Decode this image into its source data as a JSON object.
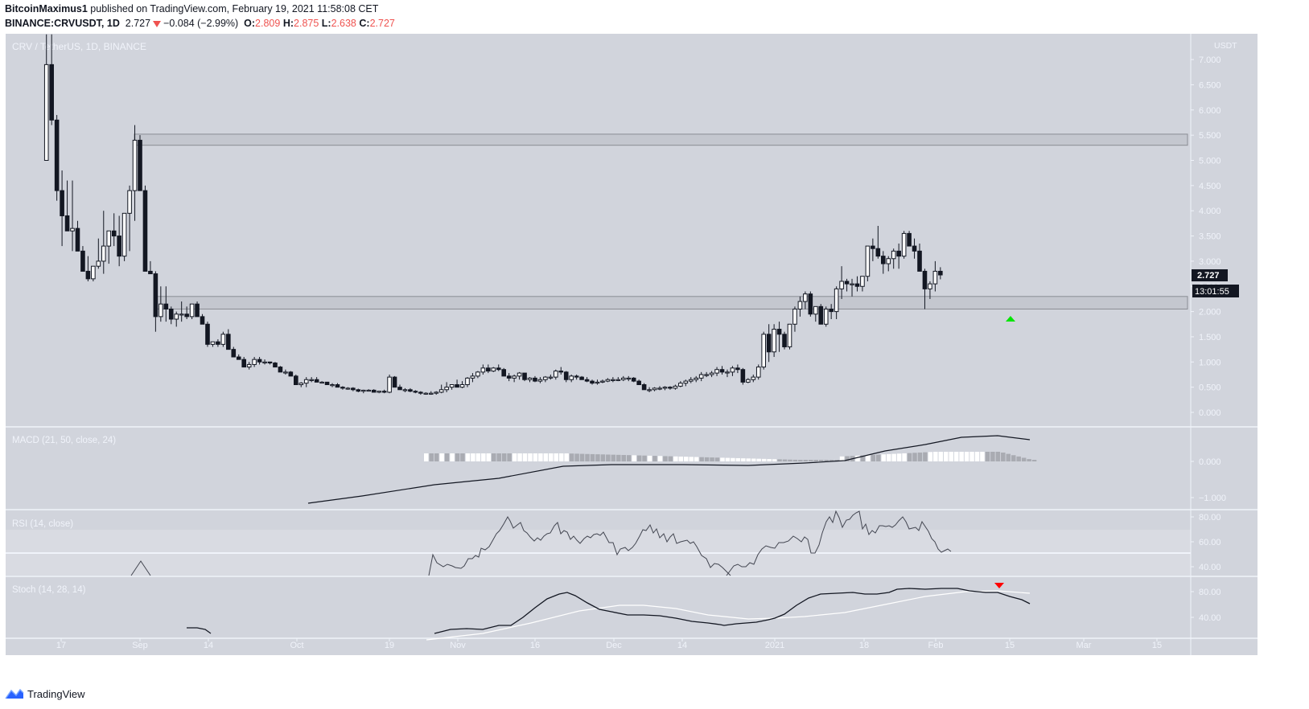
{
  "header": {
    "author": "BitcoinMaximus1",
    "published_text": " published on TradingView.com, February 19, 2021 11:58:08 CET",
    "symbol": "BINANCE:CRVUSDT, 1D",
    "last": "2.727",
    "change": "−0.084 (−2.99%)",
    "o_label": "O:",
    "o": "2.809",
    "h_label": "H:",
    "h": "2.875",
    "l_label": "L:",
    "l": "2.638",
    "c_label": "C:",
    "c": "2.727"
  },
  "footer": {
    "brand": "TradingView"
  },
  "colors": {
    "panel_bg": "#d1d4dc",
    "rsi_band": "#d9dbe2",
    "candle_down": "#131722",
    "candle_up": "#ffffff",
    "zone_fill": "#c4c7cf",
    "zone_stroke": "#8a8d94",
    "marker_up": "#00e600",
    "marker_down": "#ff0000",
    "axis_text": "#f0f3fa",
    "divider": "#f0f3fa"
  },
  "chart_data": [
    {
      "type": "candlestick",
      "title": "CRV / TetherUS, 1D, BINANCE",
      "ylabel": "USDT",
      "ylim": [
        -0.25,
        7.4
      ],
      "y_ticks": [
        "7.000",
        "6.500",
        "6.000",
        "5.500",
        "5.000",
        "4.500",
        "4.000",
        "3.500",
        "3.000",
        "2.500",
        "2.000",
        "1.500",
        "1.000",
        "0.500",
        "0.000"
      ],
      "x_ticks": [
        "17",
        "Sep",
        "14",
        "Oct",
        "19",
        "Nov",
        "16",
        "Dec",
        "14",
        "2021",
        "18",
        "Feb",
        "15",
        "Mar",
        "15"
      ],
      "last_price_label": "2.727",
      "countdown_label": "13:01:55",
      "resistance_zones": [
        {
          "from": 5.3,
          "to": 5.52,
          "x_start": "Sep 1"
        },
        {
          "from": 2.05,
          "to": 2.3,
          "x_start": "Sep 4"
        }
      ],
      "markers": [
        {
          "type": "arrow-up",
          "color": "#00e600",
          "at": "Feb 14",
          "price": 1.85
        }
      ],
      "ohlc_note": "Approximate daily candles read from chart, Aug 14 2020 to Feb 19 2021",
      "candles": [
        [
          5.0,
          7.9,
          5.0,
          6.9
        ],
        [
          6.9,
          7.6,
          5.7,
          5.8
        ],
        [
          5.8,
          5.9,
          4.2,
          4.4
        ],
        [
          4.4,
          4.8,
          3.3,
          3.9
        ],
        [
          3.9,
          4.6,
          3.6,
          3.6
        ],
        [
          3.6,
          4.6,
          3.2,
          3.65
        ],
        [
          3.65,
          3.8,
          3.2,
          3.2
        ],
        [
          3.2,
          3.3,
          2.8,
          2.8
        ],
        [
          2.8,
          3.1,
          2.6,
          2.65
        ],
        [
          2.65,
          2.9,
          2.6,
          2.9
        ],
        [
          2.9,
          3.45,
          2.85,
          3.0
        ],
        [
          3.0,
          4.0,
          2.75,
          3.3
        ],
        [
          3.3,
          3.6,
          2.95,
          3.6
        ],
        [
          3.6,
          3.95,
          3.3,
          3.5
        ],
        [
          3.5,
          3.9,
          2.9,
          3.1
        ],
        [
          3.1,
          3.9,
          3.0,
          3.95
        ],
        [
          3.95,
          4.5,
          3.2,
          4.4
        ],
        [
          4.4,
          5.7,
          3.8,
          5.4
        ],
        [
          5.4,
          5.5,
          4.4,
          4.4
        ],
        [
          4.4,
          4.5,
          2.9,
          2.8
        ],
        [
          2.8,
          3.0,
          2.8,
          2.75
        ],
        [
          2.75,
          2.8,
          1.6,
          1.9
        ],
        [
          1.9,
          2.5,
          1.8,
          2.15
        ],
        [
          2.15,
          2.5,
          1.8,
          2.05
        ],
        [
          2.05,
          2.1,
          1.75,
          1.85
        ],
        [
          1.85,
          2.0,
          1.7,
          1.95
        ],
        [
          1.95,
          2.2,
          1.8,
          1.95
        ],
        [
          1.95,
          2.1,
          1.85,
          1.9
        ],
        [
          1.9,
          2.15,
          1.85,
          2.15
        ],
        [
          2.15,
          2.2,
          1.9,
          1.9
        ],
        [
          1.9,
          1.95,
          1.75,
          1.75
        ],
        [
          1.75,
          1.8,
          1.3,
          1.35
        ],
        [
          1.35,
          1.4,
          1.3,
          1.4
        ],
        [
          1.4,
          1.45,
          1.3,
          1.35
        ],
        [
          1.35,
          1.6,
          1.3,
          1.55
        ],
        [
          1.55,
          1.65,
          1.25,
          1.25
        ],
        [
          1.25,
          1.3,
          1.1,
          1.1
        ],
        [
          1.1,
          1.15,
          1.05,
          1.05
        ],
        [
          1.05,
          1.1,
          0.9,
          0.9
        ],
        [
          0.9,
          1.0,
          0.85,
          0.95
        ],
        [
          0.95,
          1.1,
          0.9,
          1.05
        ],
        [
          1.05,
          1.1,
          0.95,
          1.0
        ],
        [
          1.0,
          1.05,
          0.95,
          1.0
        ],
        [
          1.0,
          1.0,
          0.95,
          0.98
        ],
        [
          0.98,
          1.0,
          0.9,
          0.9
        ],
        [
          0.9,
          0.92,
          0.8,
          0.8
        ],
        [
          0.8,
          0.85,
          0.75,
          0.8
        ],
        [
          0.8,
          0.82,
          0.72,
          0.72
        ],
        [
          0.72,
          0.75,
          0.55,
          0.55
        ],
        [
          0.55,
          0.6,
          0.5,
          0.58
        ],
        [
          0.58,
          0.7,
          0.5,
          0.65
        ],
        [
          0.65,
          0.7,
          0.6,
          0.65
        ],
        [
          0.65,
          0.7,
          0.6,
          0.6
        ],
        [
          0.6,
          0.62,
          0.58,
          0.6
        ],
        [
          0.6,
          0.6,
          0.55,
          0.55
        ],
        [
          0.55,
          0.58,
          0.5,
          0.55
        ],
        [
          0.55,
          0.58,
          0.5,
          0.5
        ],
        [
          0.5,
          0.52,
          0.45,
          0.48
        ],
        [
          0.48,
          0.5,
          0.45,
          0.48
        ],
        [
          0.48,
          0.5,
          0.42,
          0.45
        ],
        [
          0.45,
          0.47,
          0.4,
          0.42
        ],
        [
          0.42,
          0.45,
          0.38,
          0.44
        ],
        [
          0.44,
          0.46,
          0.42,
          0.44
        ],
        [
          0.44,
          0.46,
          0.4,
          0.4
        ],
        [
          0.4,
          0.42,
          0.38,
          0.42
        ],
        [
          0.42,
          0.45,
          0.38,
          0.4
        ],
        [
          0.4,
          0.75,
          0.38,
          0.7
        ],
        [
          0.7,
          0.72,
          0.5,
          0.5
        ],
        [
          0.5,
          0.55,
          0.45,
          0.45
        ],
        [
          0.45,
          0.48,
          0.4,
          0.45
        ],
        [
          0.45,
          0.48,
          0.4,
          0.42
        ],
        [
          0.42,
          0.44,
          0.38,
          0.4
        ],
        [
          0.4,
          0.42,
          0.35,
          0.38
        ],
        [
          0.38,
          0.4,
          0.35,
          0.38
        ],
        [
          0.38,
          0.42,
          0.35,
          0.38
        ],
        [
          0.38,
          0.42,
          0.35,
          0.4
        ],
        [
          0.4,
          0.55,
          0.38,
          0.45
        ],
        [
          0.45,
          0.6,
          0.4,
          0.5
        ],
        [
          0.5,
          0.55,
          0.45,
          0.55
        ],
        [
          0.55,
          0.65,
          0.5,
          0.5
        ],
        [
          0.5,
          0.62,
          0.48,
          0.55
        ],
        [
          0.55,
          0.7,
          0.5,
          0.68
        ],
        [
          0.68,
          0.78,
          0.6,
          0.72
        ],
        [
          0.72,
          0.82,
          0.68,
          0.8
        ],
        [
          0.8,
          0.95,
          0.75,
          0.88
        ],
        [
          0.88,
          0.95,
          0.78,
          0.82
        ],
        [
          0.82,
          0.9,
          0.8,
          0.88
        ],
        [
          0.88,
          0.95,
          0.82,
          0.85
        ],
        [
          0.85,
          0.88,
          0.72,
          0.72
        ],
        [
          0.72,
          0.78,
          0.62,
          0.68
        ],
        [
          0.68,
          0.75,
          0.6,
          0.72
        ],
        [
          0.72,
          0.8,
          0.65,
          0.78
        ],
        [
          0.78,
          0.78,
          0.62,
          0.65
        ],
        [
          0.65,
          0.7,
          0.6,
          0.68
        ],
        [
          0.68,
          0.72,
          0.6,
          0.62
        ],
        [
          0.62,
          0.7,
          0.58,
          0.65
        ],
        [
          0.65,
          0.72,
          0.6,
          0.7
        ],
        [
          0.7,
          0.75,
          0.65,
          0.7
        ],
        [
          0.7,
          0.85,
          0.65,
          0.82
        ],
        [
          0.82,
          0.9,
          0.75,
          0.8
        ],
        [
          0.8,
          0.82,
          0.6,
          0.65
        ],
        [
          0.65,
          0.75,
          0.6,
          0.72
        ],
        [
          0.72,
          0.75,
          0.65,
          0.7
        ],
        [
          0.7,
          0.72,
          0.65,
          0.65
        ],
        [
          0.65,
          0.7,
          0.6,
          0.62
        ],
        [
          0.62,
          0.65,
          0.55,
          0.58
        ],
        [
          0.58,
          0.65,
          0.55,
          0.6
        ],
        [
          0.6,
          0.65,
          0.58,
          0.62
        ],
        [
          0.62,
          0.68,
          0.6,
          0.65
        ],
        [
          0.65,
          0.7,
          0.6,
          0.65
        ],
        [
          0.65,
          0.7,
          0.62,
          0.65
        ],
        [
          0.65,
          0.72,
          0.62,
          0.68
        ],
        [
          0.68,
          0.72,
          0.62,
          0.68
        ],
        [
          0.68,
          0.7,
          0.6,
          0.62
        ],
        [
          0.62,
          0.65,
          0.55,
          0.55
        ],
        [
          0.55,
          0.58,
          0.45,
          0.45
        ],
        [
          0.45,
          0.5,
          0.4,
          0.45
        ],
        [
          0.45,
          0.5,
          0.42,
          0.48
        ],
        [
          0.48,
          0.52,
          0.44,
          0.48
        ],
        [
          0.48,
          0.52,
          0.44,
          0.5
        ],
        [
          0.5,
          0.52,
          0.45,
          0.48
        ],
        [
          0.48,
          0.55,
          0.45,
          0.52
        ],
        [
          0.52,
          0.62,
          0.5,
          0.58
        ],
        [
          0.58,
          0.65,
          0.52,
          0.62
        ],
        [
          0.62,
          0.7,
          0.58,
          0.65
        ],
        [
          0.65,
          0.72,
          0.6,
          0.68
        ],
        [
          0.68,
          0.8,
          0.62,
          0.75
        ],
        [
          0.75,
          0.8,
          0.7,
          0.75
        ],
        [
          0.75,
          0.82,
          0.7,
          0.78
        ],
        [
          0.78,
          0.9,
          0.72,
          0.85
        ],
        [
          0.85,
          0.92,
          0.75,
          0.8
        ],
        [
          0.8,
          0.85,
          0.7,
          0.8
        ],
        [
          0.8,
          0.92,
          0.72,
          0.88
        ],
        [
          0.88,
          0.95,
          0.78,
          0.85
        ],
        [
          0.85,
          0.88,
          0.55,
          0.6
        ],
        [
          0.6,
          0.68,
          0.58,
          0.65
        ],
        [
          0.65,
          0.75,
          0.6,
          0.7
        ],
        [
          0.7,
          0.95,
          0.65,
          0.9
        ],
        [
          0.9,
          1.6,
          0.85,
          1.55
        ],
        [
          1.55,
          1.75,
          1.0,
          1.2
        ],
        [
          1.2,
          1.75,
          1.1,
          1.65
        ],
        [
          1.65,
          1.8,
          1.2,
          1.55
        ],
        [
          1.55,
          1.6,
          1.25,
          1.3
        ],
        [
          1.3,
          1.75,
          1.25,
          1.75
        ],
        [
          1.75,
          2.1,
          1.6,
          2.05
        ],
        [
          2.05,
          2.3,
          1.9,
          2.2
        ],
        [
          2.2,
          2.4,
          2.05,
          2.35
        ],
        [
          2.35,
          2.4,
          1.9,
          1.95
        ],
        [
          1.95,
          2.1,
          1.8,
          2.1
        ],
        [
          2.1,
          2.15,
          1.75,
          1.75
        ],
        [
          1.75,
          2.1,
          1.7,
          2.05
        ],
        [
          2.05,
          2.15,
          1.85,
          2.0
        ],
        [
          2.0,
          2.5,
          1.85,
          2.45
        ],
        [
          2.45,
          2.9,
          2.25,
          2.6
        ],
        [
          2.6,
          2.65,
          2.4,
          2.55
        ],
        [
          2.55,
          2.65,
          2.3,
          2.55
        ],
        [
          2.55,
          2.7,
          2.4,
          2.5
        ],
        [
          2.5,
          2.7,
          2.4,
          2.7
        ],
        [
          2.7,
          3.3,
          2.6,
          3.3
        ],
        [
          3.3,
          3.45,
          3.0,
          3.25
        ],
        [
          3.25,
          3.7,
          3.05,
          3.1
        ],
        [
          3.1,
          3.2,
          2.75,
          2.95
        ],
        [
          2.95,
          3.1,
          2.8,
          3.05
        ],
        [
          3.05,
          3.25,
          2.85,
          3.2
        ],
        [
          3.2,
          3.35,
          2.85,
          3.1
        ],
        [
          3.1,
          3.6,
          3.05,
          3.55
        ],
        [
          3.55,
          3.6,
          3.3,
          3.3
        ],
        [
          3.3,
          3.45,
          3.05,
          3.2
        ],
        [
          3.2,
          3.35,
          2.8,
          2.8
        ],
        [
          2.8,
          2.85,
          2.05,
          2.45
        ],
        [
          2.45,
          2.6,
          2.25,
          2.55
        ],
        [
          2.55,
          3.0,
          2.4,
          2.8
        ],
        [
          2.8,
          2.88,
          2.64,
          2.727
        ]
      ]
    },
    {
      "type": "line+histogram",
      "title": "MACD (21, 50, close, 24)",
      "y_ticks": [
        "0.000",
        "−1.000"
      ],
      "macd_line_desc": "rises from about -1.1 in early October to ~0 by mid-November, flat through early January, then climbs to ~0.55 in early Feb, easing to ~0.4",
      "histogram_desc": "small positive bars from late Oct to Feb, alternating grey/white"
    },
    {
      "type": "line",
      "title": "RSI (14, close)",
      "y_ticks": [
        "80.00",
        "60.00",
        "40.00"
      ],
      "band": [
        30,
        70
      ],
      "midline": 50
    },
    {
      "type": "line",
      "title": "Stoch (14, 28, 14)",
      "y_ticks": [
        "80.00",
        "40.00"
      ],
      "series": [
        {
          "name": "%K",
          "color": "#131722"
        },
        {
          "name": "%D",
          "color": "#ffffff"
        }
      ],
      "markers": [
        {
          "type": "arrow-down",
          "color": "#ff0000",
          "at": "Feb 13"
        }
      ]
    }
  ]
}
